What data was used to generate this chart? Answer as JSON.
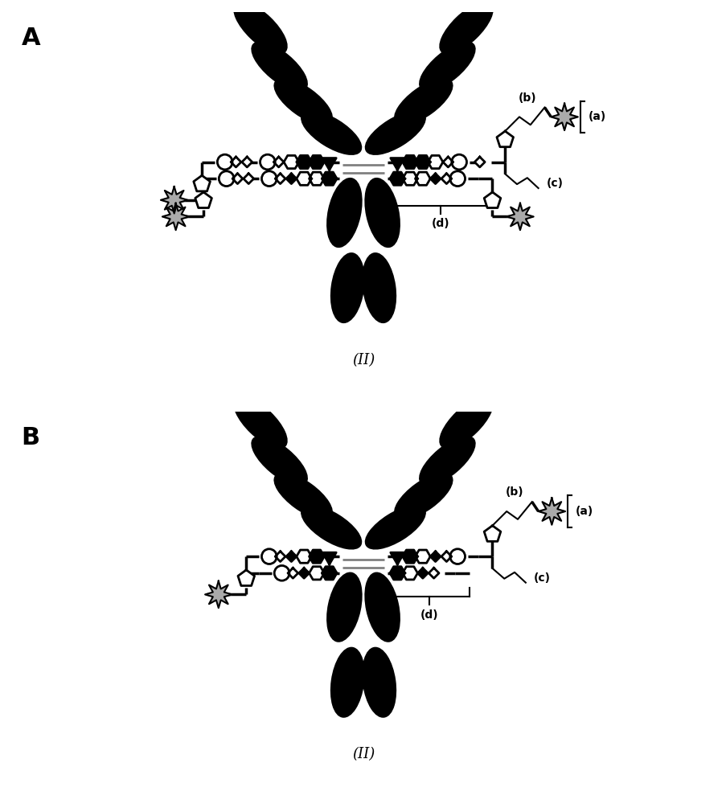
{
  "bg": "#ffffff",
  "black": "#000000",
  "gray": "#aaaaaa",
  "label_A": "A",
  "label_B": "B",
  "label_II": "(II)",
  "label_a": "(a)",
  "label_b": "(b)",
  "label_c": "(c)",
  "label_d": "(d)",
  "lw_thick": 2.5,
  "lw_thin": 1.5
}
